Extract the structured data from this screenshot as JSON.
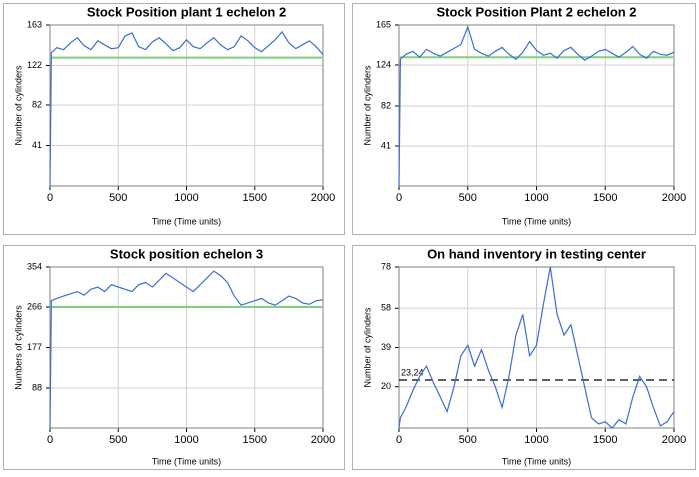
{
  "chart_data": [
    {
      "type": "line",
      "title": "Stock Position plant 1 echelon 2",
      "xlabel": "Time (Time units)",
      "ylabel": "Number of cylinders",
      "x": [
        0,
        10,
        50,
        100,
        150,
        200,
        250,
        300,
        350,
        400,
        450,
        500,
        550,
        600,
        650,
        700,
        750,
        800,
        850,
        900,
        950,
        1000,
        1050,
        1100,
        1150,
        1200,
        1250,
        1300,
        1350,
        1400,
        1450,
        1500,
        1550,
        1600,
        1650,
        1700,
        1750,
        1800,
        1850,
        1900,
        1950,
        2000
      ],
      "series": [
        {
          "color": "#3b6fd0",
          "values": [
            0,
            135,
            140,
            138,
            145,
            150,
            142,
            138,
            147,
            143,
            139,
            140,
            152,
            155,
            141,
            138,
            146,
            150,
            144,
            137,
            140,
            148,
            141,
            139,
            145,
            150,
            143,
            138,
            141,
            152,
            147,
            140,
            136,
            142,
            148,
            156,
            145,
            139,
            143,
            147,
            141,
            133
          ]
        }
      ],
      "reference_lines": [
        {
          "value": 130,
          "color": "#7fd07f"
        }
      ],
      "xlim": [
        0,
        2000
      ],
      "xticks": [
        0,
        500,
        1000,
        1500,
        2000
      ],
      "ylim": [
        0,
        163
      ],
      "yticks": [
        41,
        82,
        122,
        163
      ],
      "grid": true
    },
    {
      "type": "line",
      "title": "Stock Position Plant 2 echelon 2",
      "xlabel": "Time (Time units)",
      "ylabel": "Number of cylinders",
      "x": [
        0,
        10,
        50,
        100,
        150,
        200,
        250,
        300,
        350,
        400,
        450,
        500,
        550,
        600,
        650,
        700,
        750,
        800,
        850,
        900,
        950,
        1000,
        1050,
        1100,
        1150,
        1200,
        1250,
        1300,
        1350,
        1400,
        1450,
        1500,
        1550,
        1600,
        1650,
        1700,
        1750,
        1800,
        1850,
        1900,
        1950,
        2000
      ],
      "series": [
        {
          "color": "#3b6fd0",
          "values": [
            0,
            130,
            135,
            138,
            132,
            140,
            136,
            133,
            137,
            141,
            145,
            163,
            140,
            136,
            133,
            138,
            142,
            135,
            130,
            137,
            148,
            139,
            134,
            136,
            131,
            139,
            142,
            135,
            129,
            133,
            138,
            140,
            136,
            132,
            137,
            143,
            135,
            131,
            138,
            135,
            134,
            137
          ]
        }
      ],
      "reference_lines": [
        {
          "value": 132,
          "color": "#7fd07f"
        }
      ],
      "xlim": [
        0,
        2000
      ],
      "xticks": [
        0,
        500,
        1000,
        1500,
        2000
      ],
      "ylim": [
        0,
        165
      ],
      "yticks": [
        41,
        82,
        124,
        165
      ],
      "grid": true
    },
    {
      "type": "line",
      "title": "Stock position echelon 3",
      "xlabel": "Time (Time units)",
      "ylabel": "Numbers of cylinders",
      "x": [
        0,
        10,
        50,
        100,
        150,
        200,
        250,
        300,
        350,
        400,
        450,
        500,
        550,
        600,
        650,
        700,
        750,
        800,
        850,
        900,
        950,
        1000,
        1050,
        1100,
        1150,
        1200,
        1250,
        1300,
        1350,
        1400,
        1450,
        1500,
        1550,
        1600,
        1650,
        1700,
        1750,
        1800,
        1850,
        1900,
        1950,
        2000
      ],
      "series": [
        {
          "color": "#3b6fd0",
          "values": [
            0,
            280,
            285,
            290,
            295,
            300,
            292,
            305,
            310,
            300,
            315,
            310,
            305,
            300,
            315,
            320,
            310,
            325,
            340,
            330,
            320,
            310,
            300,
            315,
            330,
            345,
            335,
            320,
            290,
            270,
            275,
            280,
            285,
            275,
            270,
            280,
            290,
            285,
            275,
            272,
            280,
            282
          ]
        }
      ],
      "reference_lines": [
        {
          "value": 266,
          "color": "#7fd07f"
        }
      ],
      "xlim": [
        0,
        2000
      ],
      "xticks": [
        0,
        500,
        1000,
        1500,
        2000
      ],
      "ylim": [
        0,
        354
      ],
      "yticks": [
        88,
        177,
        266,
        354
      ],
      "grid": true
    },
    {
      "type": "line",
      "title": "On hand inventory in testing center",
      "xlabel": "Time (Time units)",
      "ylabel": "Number of cylinders",
      "x": [
        0,
        10,
        50,
        100,
        150,
        200,
        250,
        300,
        350,
        400,
        450,
        500,
        550,
        600,
        650,
        700,
        750,
        800,
        850,
        900,
        950,
        1000,
        1050,
        1100,
        1150,
        1200,
        1250,
        1300,
        1350,
        1400,
        1450,
        1500,
        1550,
        1600,
        1650,
        1700,
        1750,
        1800,
        1850,
        1900,
        1950,
        2000
      ],
      "series": [
        {
          "color": "#3b6fd0",
          "values": [
            0,
            5,
            10,
            18,
            25,
            30,
            22,
            15,
            8,
            20,
            35,
            40,
            30,
            38,
            28,
            20,
            10,
            25,
            45,
            55,
            35,
            40,
            60,
            78,
            55,
            45,
            50,
            35,
            20,
            5,
            2,
            3,
            0,
            4,
            2,
            15,
            25,
            20,
            10,
            1,
            3,
            8
          ]
        }
      ],
      "reference_lines": [
        {
          "value": 23.24,
          "label": "23,24",
          "color": "#000000",
          "dashed": true
        }
      ],
      "xlim": [
        0,
        2000
      ],
      "xticks": [
        0,
        500,
        1000,
        1500,
        2000
      ],
      "ylim": [
        0,
        78
      ],
      "yticks": [
        20,
        39,
        58,
        78
      ],
      "grid": true
    }
  ]
}
